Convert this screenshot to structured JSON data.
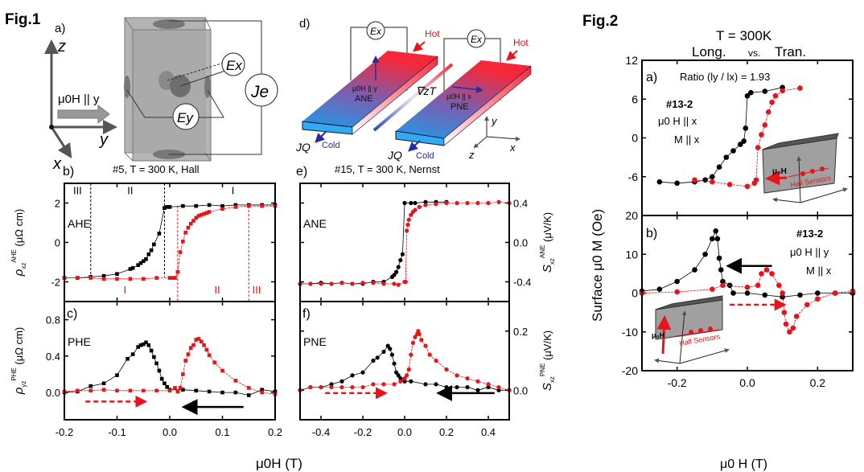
{
  "figure1": {
    "label": "Fig.1",
    "panel_a": {
      "label": "a)",
      "field": "μ0H || y",
      "axes": {
        "z": "z",
        "y": "y",
        "x": "x"
      },
      "ex": "Ex",
      "ey": "Ey",
      "je": "Je"
    },
    "panel_d": {
      "label": "d)",
      "hot": "Hot",
      "cold": "Cold",
      "jq": "JQ",
      "ex": "Ex",
      "grad": "∇zT",
      "left_field": "μ0H || y",
      "left_effect": "ANE",
      "right_field": "μ0H || x",
      "right_effect": "PNE",
      "axes": {
        "y": "y",
        "x": "x",
        "z": "z"
      }
    },
    "panel_b_title": "#5, T = 300 K, Hall",
    "panel_e_title": "#15, T = 300 K, Nernst",
    "xlabel": "μ0H (T)"
  },
  "figure2": {
    "label": "Fig.2",
    "title_line1": "T = 300K",
    "title_line2_a": "Long.",
    "title_line2_vs": "vs.",
    "title_line2_b": "Tran.",
    "ylabel": "Surface μ0 M (Oe)",
    "xlabel": "μ0 H (T)",
    "panel_a": {
      "label": "a)",
      "ratio": "Ratio (ly / lx) = 1.93",
      "sample": "#13-2",
      "field": "μ0 H || x",
      "mag": "M || x",
      "sensors": "Hall Sensors"
    },
    "panel_b": {
      "label": "b)",
      "sample": "#13-2",
      "field": "μ0 H || y",
      "mag": "M || x",
      "sensors": "Hall Sensors"
    }
  },
  "colors": {
    "down_sweep": "#000000",
    "up_sweep": "#e8141b",
    "hot": "#f0283c",
    "cold": "#2a8ee8",
    "arrow_blue": "#2a2aa0"
  },
  "chart_data": [
    {
      "id": "b",
      "type": "line",
      "label": "b)",
      "tag": "AHE",
      "marker": "square",
      "ylabel": {
        "sym": "ρ",
        "sub": "xz",
        "sup": "AHE",
        "unit": "(μΩ cm)"
      },
      "xlim": [
        -0.2,
        0.2
      ],
      "ylim": [
        -3,
        3
      ],
      "yticks": [
        "-2",
        "0",
        "2"
      ],
      "ytick_side": "left",
      "regions_black": [
        "III",
        "II",
        "I"
      ],
      "regions_red": [
        "I",
        "II",
        "III"
      ],
      "boundaries_black": [
        -0.15,
        -0.01
      ],
      "boundaries_red": [
        0.015,
        0.15
      ],
      "series": [
        {
          "sweep": "down",
          "color": "#000000",
          "x": [
            -0.2,
            -0.175,
            -0.15,
            -0.125,
            -0.1,
            -0.075,
            -0.07,
            -0.06,
            -0.055,
            -0.05,
            -0.045,
            -0.04,
            -0.035,
            -0.03,
            -0.02,
            -0.01,
            -0.005,
            0,
            0.025,
            0.05,
            0.075,
            0.1,
            0.125,
            0.15,
            0.175,
            0.2
          ],
          "y": [
            -1.8,
            -1.8,
            -1.75,
            -1.7,
            -1.6,
            -1.35,
            -1.3,
            -1.15,
            -1.05,
            -0.95,
            -0.85,
            -0.6,
            -0.4,
            -0.1,
            0.45,
            1.75,
            1.8,
            1.8,
            1.85,
            1.85,
            1.9,
            1.85,
            1.9,
            1.9,
            1.9,
            1.9
          ]
        },
        {
          "sweep": "up",
          "color": "#e8141b",
          "x": [
            -0.2,
            -0.175,
            -0.15,
            -0.125,
            -0.1,
            -0.075,
            -0.05,
            -0.025,
            0,
            0.005,
            0.01,
            0.015,
            0.02,
            0.025,
            0.03,
            0.035,
            0.04,
            0.045,
            0.05,
            0.055,
            0.06,
            0.065,
            0.07,
            0.075,
            0.1,
            0.125,
            0.15,
            0.175,
            0.2
          ],
          "y": [
            -1.8,
            -1.8,
            -1.8,
            -1.85,
            -1.85,
            -1.85,
            -1.85,
            -1.8,
            -1.8,
            -1.8,
            -1.8,
            -1.5,
            -0.5,
            0.05,
            0.5,
            0.75,
            0.95,
            1.1,
            1.25,
            1.35,
            1.4,
            1.45,
            1.5,
            1.55,
            1.7,
            1.8,
            1.85,
            1.85,
            1.85
          ]
        }
      ]
    },
    {
      "id": "c",
      "type": "line",
      "label": "c)",
      "tag": "PHE",
      "marker": "square",
      "ylabel": {
        "sym": "ρ",
        "sub": "yz",
        "sup": "PHE",
        "unit": "(μΩ cm)"
      },
      "xlim": [
        -0.2,
        0.2
      ],
      "ylim": [
        -0.3,
        1.0
      ],
      "yticks": [
        "0.0",
        "0.4",
        "0.8"
      ],
      "ytick_side": "left",
      "xticks": [
        "-0.2",
        "-0.1",
        "0.0",
        "0.1",
        "0.2"
      ],
      "arrows": [
        {
          "color": "#e8141b",
          "dashed": true,
          "from": [
            -0.16,
            -0.1
          ],
          "to": [
            -0.05,
            -0.1
          ]
        },
        {
          "color": "#000000",
          "dashed": false,
          "from": [
            0.14,
            -0.16
          ],
          "to": [
            0.03,
            -0.16
          ]
        }
      ],
      "series": [
        {
          "sweep": "down",
          "color": "#000000",
          "x": [
            -0.2,
            -0.175,
            -0.15,
            -0.125,
            -0.1,
            -0.08,
            -0.07,
            -0.06,
            -0.055,
            -0.05,
            -0.045,
            -0.04,
            -0.035,
            -0.03,
            -0.025,
            -0.02,
            -0.015,
            -0.01,
            -0.005,
            0,
            0.025,
            0.05,
            0.075,
            0.1,
            0.125,
            0.15,
            0.175,
            0.2
          ],
          "y": [
            0,
            0.01,
            0.07,
            0.1,
            0.19,
            0.37,
            0.42,
            0.5,
            0.52,
            0.53,
            0.55,
            0.52,
            0.46,
            0.39,
            0.32,
            0.24,
            0.15,
            0.1,
            0.06,
            0.03,
            0.03,
            0.02,
            0.01,
            0,
            0,
            -0.03,
            0.03,
            0.01
          ]
        },
        {
          "sweep": "up",
          "color": "#e8141b",
          "x": [
            -0.2,
            -0.175,
            -0.15,
            -0.125,
            -0.1,
            -0.075,
            -0.05,
            -0.025,
            0,
            0.01,
            0.015,
            0.02,
            0.025,
            0.03,
            0.035,
            0.04,
            0.045,
            0.05,
            0.055,
            0.06,
            0.065,
            0.07,
            0.075,
            0.085,
            0.1,
            0.125,
            0.15,
            0.175,
            0.2
          ],
          "y": [
            0.01,
            0.02,
            0.02,
            0.03,
            0.02,
            0.02,
            0.02,
            0.02,
            0.02,
            0.05,
            0.01,
            0.05,
            0.2,
            0.35,
            0.42,
            0.49,
            0.52,
            0.58,
            0.59,
            0.56,
            0.52,
            0.47,
            0.41,
            0.33,
            0.24,
            0.13,
            0.05,
            0,
            -0.02
          ]
        }
      ]
    },
    {
      "id": "e",
      "type": "line",
      "label": "e)",
      "tag": "ANE",
      "marker": "circle",
      "ylabel": {
        "sym": "S",
        "sub": "xz",
        "sup": "ANE",
        "unit": "(μV/K)"
      },
      "xlim": [
        -0.5,
        0.5
      ],
      "ylim": [
        -0.6,
        0.6
      ],
      "yticks": [
        "-0.4",
        "0.0",
        "0.4"
      ],
      "ytick_side": "right",
      "series": [
        {
          "sweep": "down",
          "color": "#000000",
          "x": [
            -0.5,
            -0.45,
            -0.4,
            -0.35,
            -0.3,
            -0.25,
            -0.2,
            -0.15,
            -0.1,
            -0.06,
            -0.05,
            -0.04,
            -0.03,
            -0.02,
            -0.01,
            0,
            0.03,
            0.05,
            0.1,
            0.15,
            0.2
          ],
          "y": [
            -0.42,
            -0.42,
            -0.41,
            -0.42,
            -0.41,
            -0.42,
            -0.42,
            -0.4,
            -0.4,
            -0.35,
            -0.33,
            -0.3,
            -0.25,
            -0.18,
            -0.12,
            0.4,
            0.4,
            0.4,
            0.41,
            0.41,
            0.41
          ]
        },
        {
          "sweep": "up",
          "color": "#e8141b",
          "x": [
            -0.5,
            -0.45,
            -0.4,
            -0.35,
            -0.3,
            -0.25,
            -0.2,
            -0.15,
            -0.1,
            -0.05,
            -0.03,
            0,
            0.005,
            0.01,
            0.015,
            0.02,
            0.03,
            0.04,
            0.05,
            0.07,
            0.1,
            0.15,
            0.2,
            0.25,
            0.3,
            0.35,
            0.4,
            0.45,
            0.5
          ],
          "y": [
            -0.42,
            -0.42,
            -0.42,
            -0.42,
            -0.41,
            -0.42,
            -0.41,
            -0.41,
            -0.42,
            -0.42,
            -0.43,
            -0.4,
            -0.4,
            0.12,
            0.18,
            0.23,
            0.28,
            0.31,
            0.33,
            0.36,
            0.38,
            0.39,
            0.4,
            0.4,
            0.4,
            0.4,
            0.4,
            0.41,
            0.4
          ]
        }
      ]
    },
    {
      "id": "f",
      "type": "line",
      "label": "f)",
      "tag": "PNE",
      "marker": "circle",
      "ylabel": {
        "sym": "S",
        "sub": "xz",
        "sup": "PNE",
        "unit": "(μV/K)"
      },
      "xlim": [
        -0.5,
        0.5
      ],
      "ylim": [
        -0.1,
        0.3
      ],
      "yticks": [
        "0.0",
        "0.2"
      ],
      "ytick_side": "right",
      "xticks": [
        "-0.4",
        "-0.2",
        "0.0",
        "0.2",
        "0.4"
      ],
      "arrows": [
        {
          "color": "#e8141b",
          "dashed": true,
          "from": [
            -0.38,
            -0.01
          ],
          "to": [
            -0.1,
            -0.01
          ]
        },
        {
          "color": "#000000",
          "dashed": false,
          "from": [
            0.43,
            -0.01
          ],
          "to": [
            0.17,
            -0.01
          ]
        }
      ],
      "series": [
        {
          "sweep": "down",
          "color": "#000000",
          "x": [
            -0.5,
            -0.45,
            -0.4,
            -0.35,
            -0.3,
            -0.25,
            -0.2,
            -0.15,
            -0.13,
            -0.1,
            -0.08,
            -0.07,
            -0.06,
            -0.05,
            -0.04,
            -0.03,
            -0.02,
            0,
            0.03,
            0.1,
            0.15,
            0.2,
            0.25,
            0.3,
            0.35,
            0.4,
            0.45,
            0.5
          ],
          "y": [
            0,
            0.01,
            0.01,
            0.02,
            0.03,
            0.05,
            0.06,
            0.1,
            0.11,
            0.13,
            0.15,
            0.14,
            0.12,
            0.09,
            0.06,
            0.05,
            0.04,
            0.03,
            0.03,
            0.02,
            0.02,
            0.01,
            0.01,
            0.01,
            0,
            0.01,
            0,
            0
          ]
        },
        {
          "sweep": "up",
          "color": "#e8141b",
          "x": [
            -0.5,
            -0.45,
            -0.4,
            -0.35,
            -0.3,
            -0.25,
            -0.2,
            -0.15,
            -0.1,
            -0.05,
            -0.02,
            0,
            0.01,
            0.02,
            0.03,
            0.04,
            0.05,
            0.06,
            0.065,
            0.07,
            0.08,
            0.1,
            0.12,
            0.15,
            0.2,
            0.25,
            0.3,
            0.35,
            0.4,
            0.45,
            0.5
          ],
          "y": [
            0,
            0.01,
            0.01,
            0.01,
            0.01,
            0.01,
            0.01,
            0.02,
            0.02,
            0.02,
            0.03,
            0.04,
            0.05,
            0.07,
            0.12,
            0.16,
            0.18,
            0.19,
            0.2,
            0.19,
            0.17,
            0.15,
            0.12,
            0.1,
            0.07,
            0.05,
            0.04,
            0.03,
            0.02,
            0.01,
            0
          ]
        }
      ]
    },
    {
      "id": "g2a",
      "type": "scatter",
      "marker": "circle",
      "xlim": [
        -0.3,
        0.3
      ],
      "ylim": [
        -12,
        12
      ],
      "yticks": [
        "12",
        "6",
        "0",
        "-6"
      ],
      "ytick_side": "left",
      "series": [
        {
          "sweep": "down",
          "color": "#000000",
          "x": [
            -0.25,
            -0.2,
            -0.15,
            -0.12,
            -0.1,
            -0.08,
            -0.06,
            -0.04,
            -0.02,
            -0.01,
            -0.005,
            0,
            0.01,
            0.05,
            0.1
          ],
          "y": [
            -6.8,
            -7,
            -6.8,
            -6.5,
            -6,
            -4.5,
            -3,
            -2,
            -1,
            -0.5,
            1.5,
            6.5,
            7,
            7.2,
            7.8
          ]
        },
        {
          "sweep": "up",
          "color": "#e8141b",
          "x": [
            -0.15,
            -0.1,
            -0.05,
            0,
            0.02,
            0.025,
            0.03,
            0.04,
            0.05,
            0.06,
            0.07,
            0.08,
            0.1,
            0.15
          ],
          "y": [
            -6.5,
            -6.8,
            -7.2,
            -7.5,
            -7,
            -6.5,
            -1.5,
            0.5,
            2,
            4,
            5.5,
            6.5,
            7.3,
            7.7
          ]
        }
      ]
    },
    {
      "id": "g2b",
      "type": "scatter",
      "marker": "circle",
      "xlim": [
        -0.3,
        0.3
      ],
      "ylim": [
        -20,
        20
      ],
      "yticks": [
        "20",
        "10",
        "0",
        "-10",
        "-20"
      ],
      "ytick_side": "left",
      "xticks": [
        "-0.2",
        "0.0",
        "0.2"
      ],
      "arrows": [
        {
          "color": "#000000",
          "dashed": false,
          "from": [
            0.07,
            7
          ],
          "to": [
            -0.05,
            7
          ]
        },
        {
          "color": "#e8141b",
          "dashed": true,
          "from": [
            -0.05,
            -3
          ],
          "to": [
            0.1,
            -3
          ]
        }
      ],
      "series": [
        {
          "sweep": "down",
          "color": "#000000",
          "x": [
            -0.3,
            -0.25,
            -0.2,
            -0.15,
            -0.12,
            -0.1,
            -0.09,
            -0.085,
            -0.08,
            -0.075,
            -0.07,
            -0.05,
            -0.04,
            0,
            0.05,
            0.1,
            0.15,
            0.2,
            0.25,
            0.3
          ],
          "y": [
            0.5,
            1,
            3,
            6,
            10,
            14,
            16,
            14,
            9,
            6,
            3,
            2,
            0,
            0,
            -0.5,
            -1,
            -0.5,
            0,
            0,
            0
          ]
        },
        {
          "sweep": "up",
          "color": "#e8141b",
          "x": [
            -0.3,
            -0.2,
            -0.1,
            -0.07,
            0,
            0.03,
            0.04,
            0.055,
            0.07,
            0.09,
            0.1,
            0.105,
            0.11,
            0.12,
            0.13,
            0.14,
            0.17,
            0.2,
            0.25,
            0.3
          ],
          "y": [
            0,
            0.3,
            1,
            2,
            1.5,
            2,
            5,
            6,
            5,
            2,
            0,
            -5,
            -8,
            -10,
            -9,
            -6,
            -3,
            -1.5,
            0,
            0.5
          ]
        }
      ]
    }
  ]
}
